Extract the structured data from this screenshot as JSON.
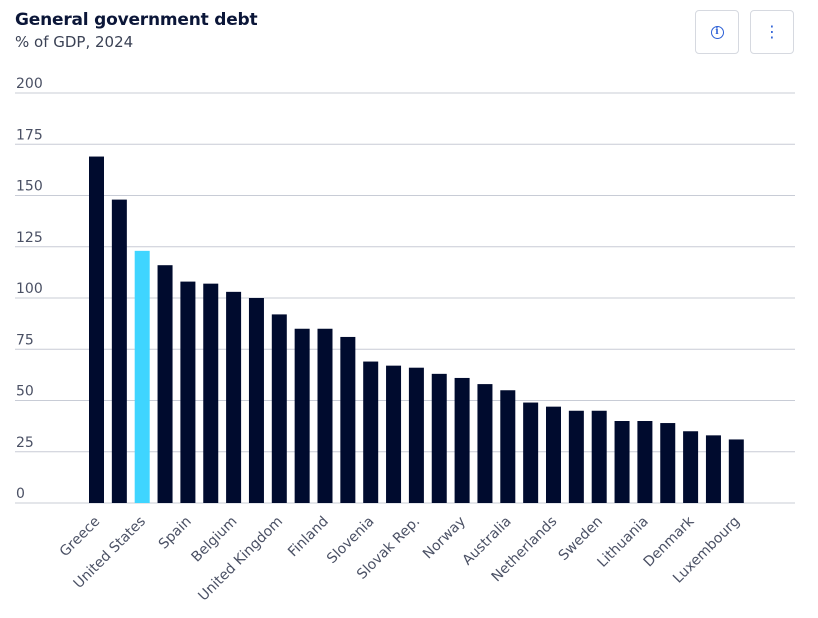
{
  "header": {
    "title": "General government debt",
    "subtitle": "% of GDP, 2024"
  },
  "toolbar": {
    "info_icon": "info-icon",
    "more_icon": "more-vertical-icon",
    "info_glyph": "i",
    "more_glyph": "⋮"
  },
  "colors": {
    "bar": "#000b2e",
    "highlight": "#3fd5ff",
    "grid": "#c8ccd6",
    "axis_text": "#4a5064",
    "title": "#0b1638"
  },
  "chart_data": {
    "type": "bar",
    "title": "General government debt",
    "subtitle": "% of GDP, 2024",
    "ylim": [
      0,
      200
    ],
    "yticks": [
      0,
      25,
      50,
      75,
      100,
      125,
      150,
      175,
      200
    ],
    "grid": true,
    "categories": [
      "Greece",
      "",
      "United States",
      "",
      "Spain",
      "",
      "Belgium",
      "",
      "United Kingdom",
      "",
      "Finland",
      "",
      "Slovenia",
      "",
      "Slovak Rep.",
      "",
      "Norway",
      "",
      "Australia",
      "",
      "Netherlands",
      "",
      "Sweden",
      "",
      "Lithuania",
      "",
      "Denmark",
      "",
      "Luxembourg"
    ],
    "values": [
      169,
      148,
      123,
      116,
      108,
      107,
      103,
      100,
      92,
      85,
      85,
      81,
      69,
      67,
      66,
      63,
      61,
      58,
      55,
      49,
      47,
      45,
      45,
      40,
      40,
      39,
      35,
      33,
      31
    ],
    "highlight_index": 2
  }
}
